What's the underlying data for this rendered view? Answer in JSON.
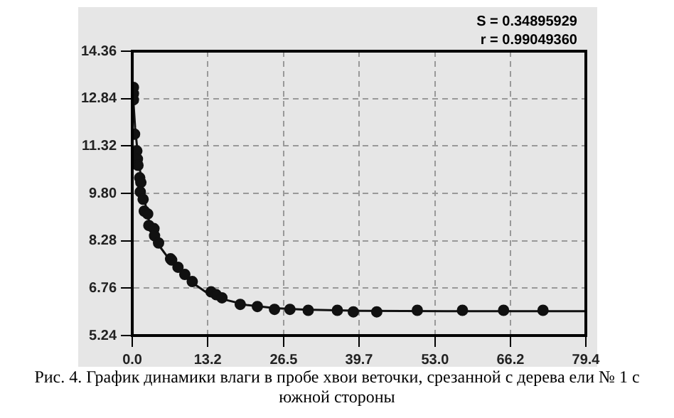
{
  "chart_data": {
    "type": "scatter",
    "xlim": [
      0,
      79.4
    ],
    "ylim": [
      5.24,
      14.36
    ],
    "xticks": [
      {
        "value": 0,
        "label": "0.0"
      },
      13.2,
      26.5,
      39.7,
      {
        "value": 53,
        "label": "53.0"
      },
      66.2,
      79.4
    ],
    "yticks": [
      5.24,
      6.76,
      8.28,
      {
        "value": 9.8,
        "label": "9.80"
      },
      11.32,
      12.84,
      14.36
    ],
    "grid": true,
    "legend": false,
    "series": [
      {
        "marker": "circle",
        "color": "#111111",
        "x": [
          0.2,
          0.2,
          0.2,
          0.4,
          0.8,
          0.9,
          1.0,
          1.3,
          1.4,
          1.5,
          1.9,
          2.1,
          2.7,
          2.9,
          3.8,
          3.9,
          4.6,
          6.7,
          6.9,
          8.0,
          9.2,
          10.5,
          13.8,
          14.7,
          15.7,
          18.9,
          21.9,
          24.9,
          27.6,
          30.8,
          35.9,
          38.7,
          42.8,
          49.9,
          57.8,
          65.0,
          71.9
        ],
        "values": [
          13.2,
          13.0,
          12.8,
          11.7,
          11.16,
          10.9,
          10.7,
          10.3,
          9.85,
          10.15,
          9.61,
          9.23,
          9.14,
          8.77,
          8.67,
          8.44,
          8.21,
          7.7,
          7.66,
          7.43,
          7.2,
          6.97,
          6.64,
          6.55,
          6.45,
          6.24,
          6.17,
          6.08,
          6.08,
          6.05,
          6.05,
          6.0,
          6.0,
          6.05,
          6.05,
          6.05,
          6.05
        ]
      },
      {
        "type": "line",
        "marker": "none",
        "line_style": "solid",
        "color": "#111111",
        "x": [
          0,
          0.5,
          1,
          2,
          3,
          4,
          5,
          6,
          8,
          10,
          13,
          16,
          20,
          25,
          30,
          40,
          55,
          79.4
        ],
        "values": [
          13.3,
          11.9,
          11.0,
          9.7,
          8.85,
          8.35,
          8.05,
          7.8,
          7.35,
          7.0,
          6.62,
          6.4,
          6.22,
          6.12,
          6.07,
          6.03,
          6.02,
          6.02
        ]
      }
    ],
    "annotations": [
      "S = 0.34895929",
      "r = 0.99049360",
      "Рис. 4. График динамики влаги в пробе хвои веточки, срезанной  с дерева ели № 1 с южной стороны"
    ]
  }
}
